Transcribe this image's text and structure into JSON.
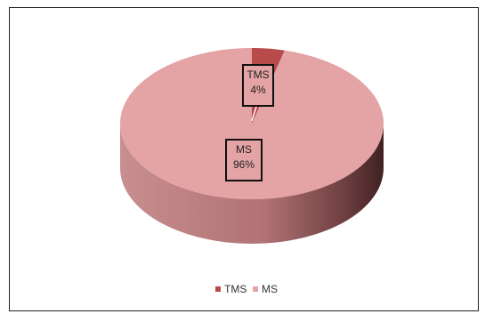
{
  "chart_data": {
    "type": "pie",
    "three_d": true,
    "title": "",
    "slices": [
      {
        "label": "TMS",
        "value": 4,
        "value_label": "4%",
        "color": "#b84a4a",
        "side_color": "#7a2e2e"
      },
      {
        "label": "MS",
        "value": 96,
        "value_label": "96%",
        "color": "#e4a3a4",
        "side_color": "#b47577"
      }
    ],
    "legend": {
      "position": "bottom",
      "entries": [
        "TMS",
        "MS"
      ]
    },
    "data_labels": true
  }
}
